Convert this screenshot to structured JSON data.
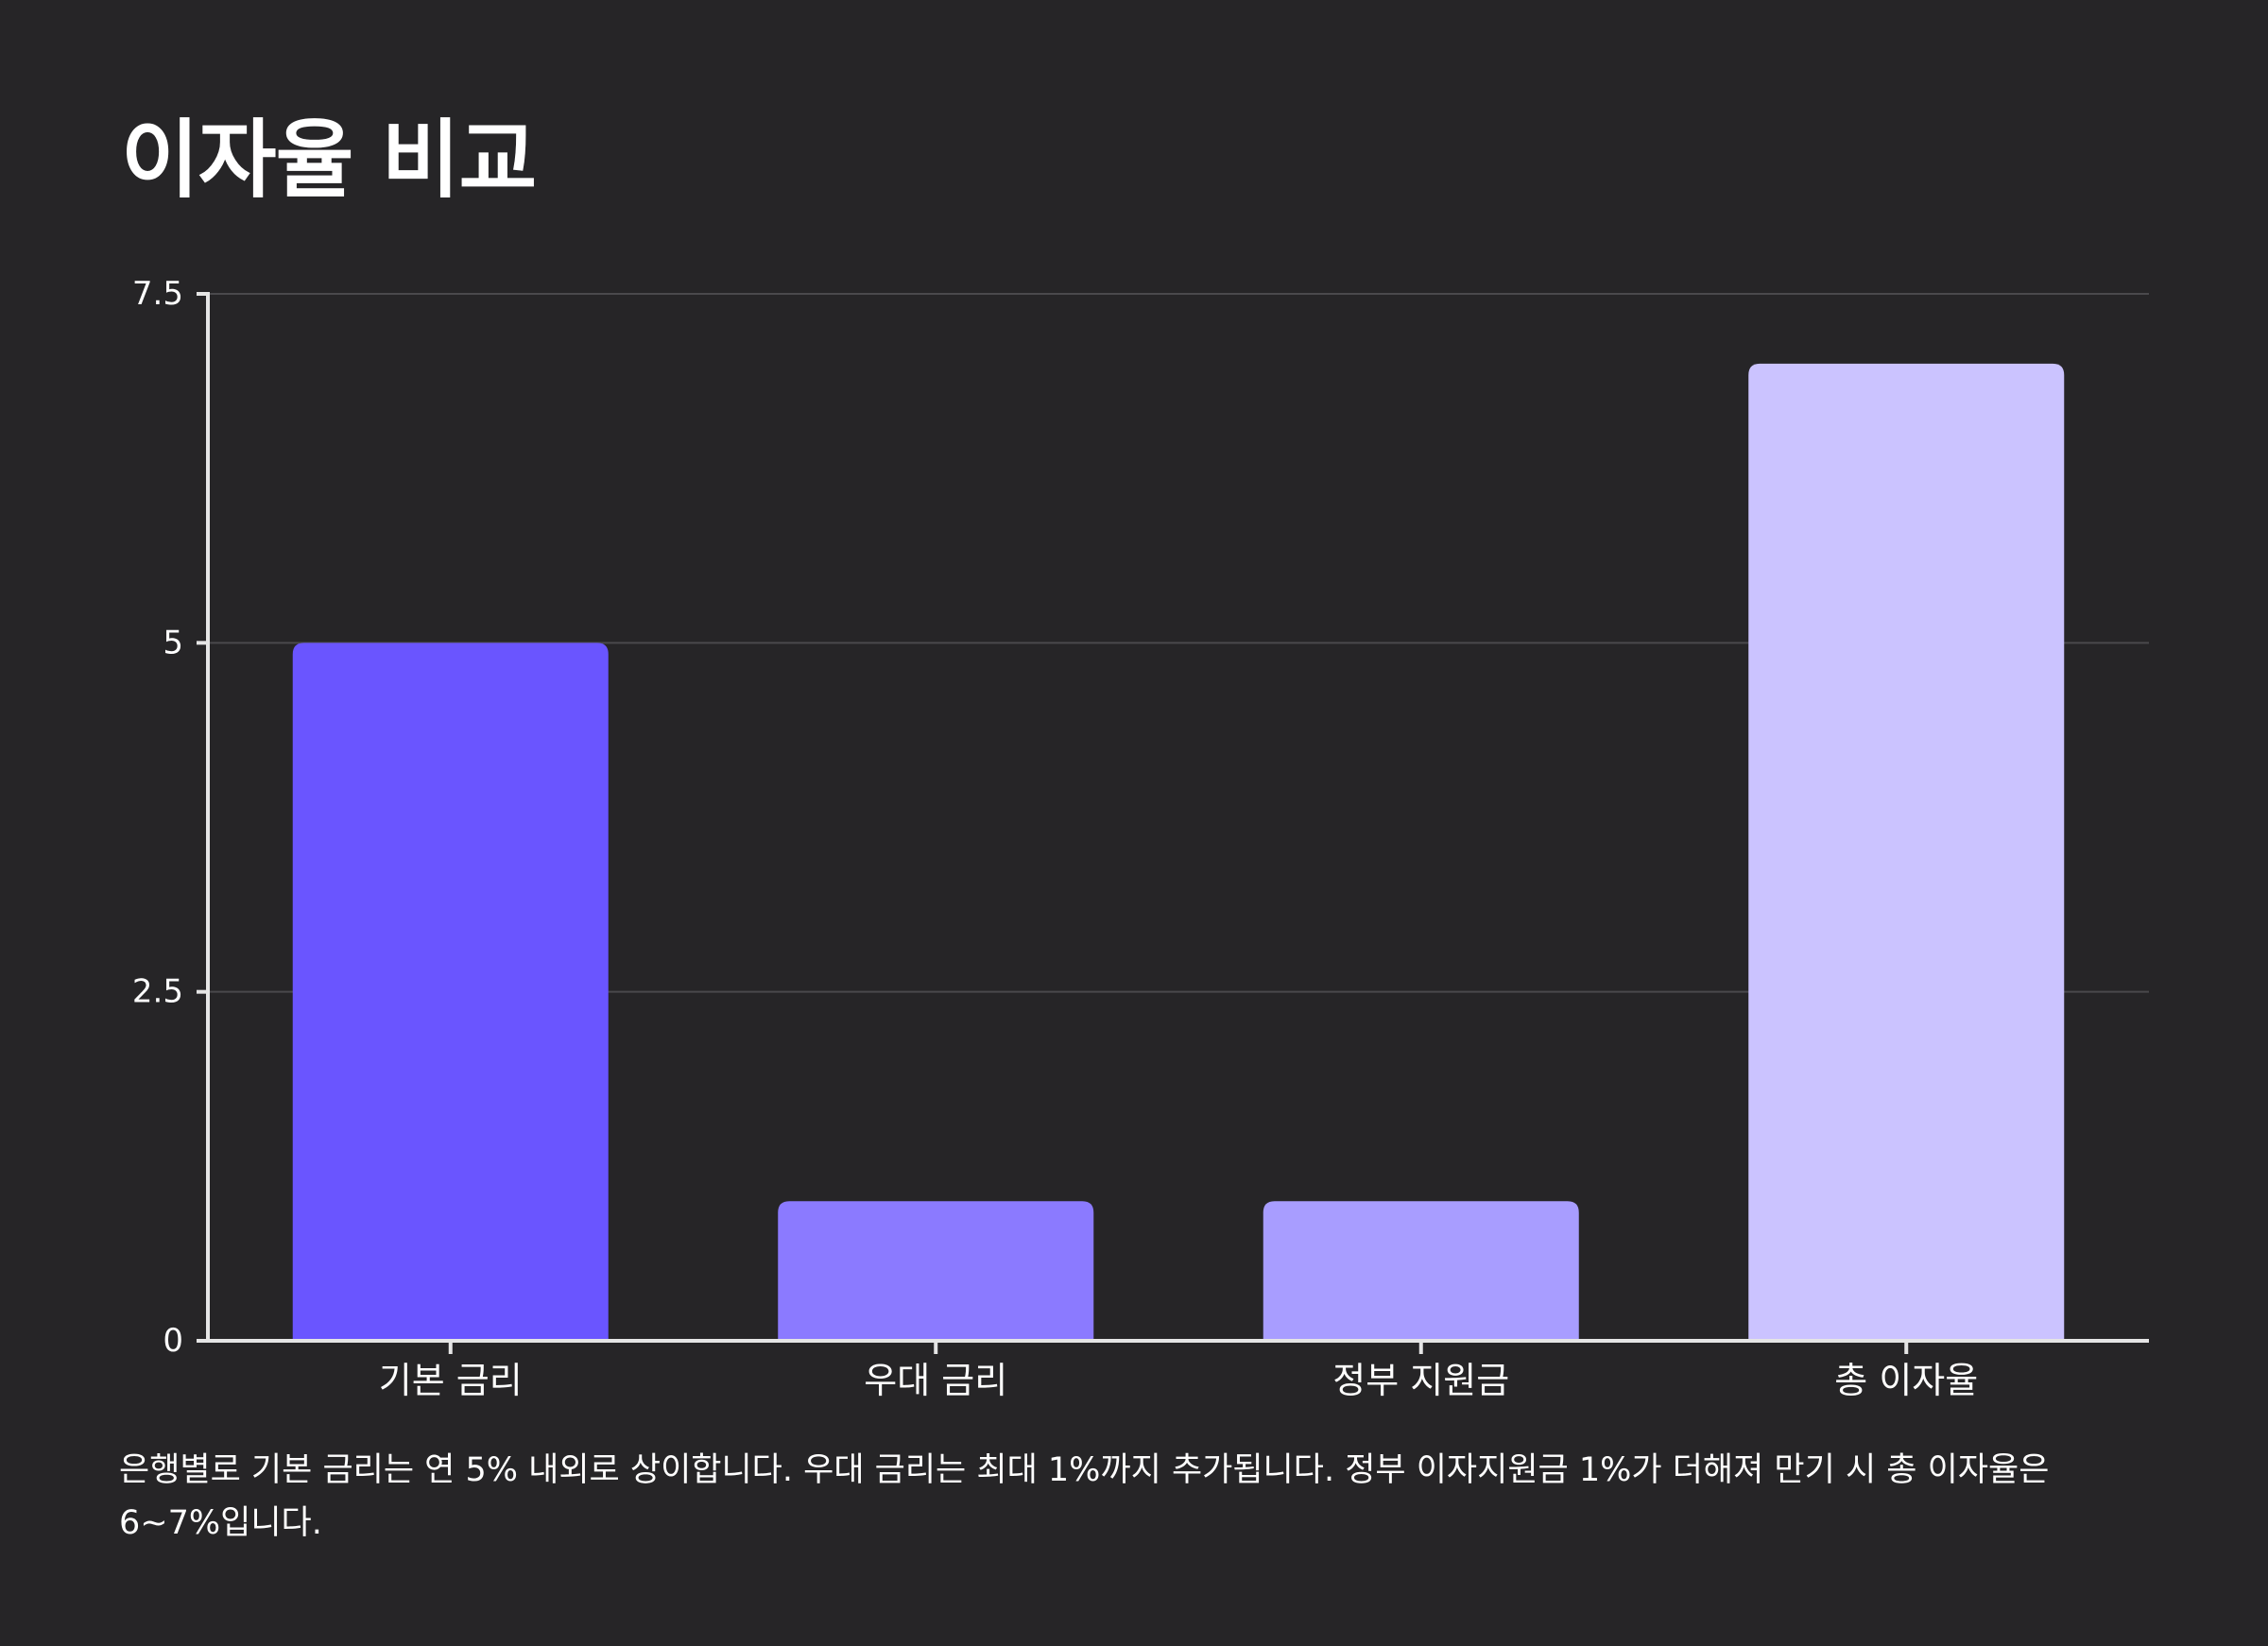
{
  "chart_data": {
    "type": "bar",
    "title": "이자율 비교",
    "categories": [
      "기본 금리",
      "우대 금리",
      "정부 지원금",
      "총 이자율"
    ],
    "values": [
      5,
      1,
      1,
      7
    ],
    "colors": [
      "#6a55ff",
      "#8b7aff",
      "#a89dff",
      "#cbc3ff"
    ],
    "xlabel": "",
    "ylabel": "",
    "ylim": [
      0,
      7.5
    ],
    "yticks": [
      0,
      2.5,
      5,
      7.5
    ],
    "ytick_labels": [
      "0",
      "2.5",
      "5",
      "7.5"
    ],
    "grid": true,
    "grid_color": "#4a494c",
    "axis_color": "#e5e5e5",
    "background": "#262527",
    "note": "은행별로 기본 금리는 연 5% 내외로 상이합니다. 우대 금리는 최대 1%까지 추가됩니다. 정부 이자지원금 1%가 더해져 만기 시 총 이자율은 6~7%입니다."
  }
}
